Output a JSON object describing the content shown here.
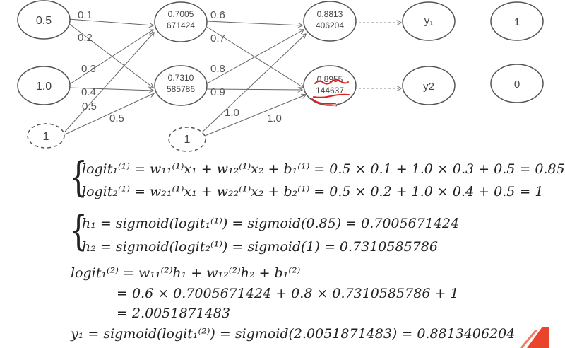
{
  "nodes": {
    "x1": "0.5",
    "x2": "1.0",
    "bias1": "1",
    "h1": [
      "0.7005",
      "671424"
    ],
    "h2": [
      "0.7310",
      "585786"
    ],
    "bias2": "1",
    "o1": [
      "0.8813",
      "406204"
    ],
    "o2": [
      "0.8955",
      "144637"
    ],
    "y1": "y₁",
    "y2": "y2",
    "t1": "1",
    "t2": "0"
  },
  "weights": {
    "w1_11": "0.1",
    "w1_21": "0.2",
    "w1_12": "0.3",
    "w1_22": "0.4",
    "b1_1": "0.5",
    "b1_2": "0.5",
    "w2_11": "0.6",
    "w2_21": "0.7",
    "w2_12": "0.8",
    "w2_22": "0.9",
    "b2_1": "1.0",
    "b2_2": "1.0"
  },
  "equations": {
    "logit1": "logit₁⁽¹⁾ = w₁₁⁽¹⁾x₁ + w₁₂⁽¹⁾x₂ + b₁⁽¹⁾ = 0.5 × 0.1 + 1.0 × 0.3 + 0.5 = 0.85",
    "logit2": "logit₂⁽¹⁾ = w₂₁⁽¹⁾x₁ + w₂₂⁽¹⁾x₂ + b₂⁽¹⁾ = 0.5 × 0.2 + 1.0 × 0.4 + 0.5 = 1",
    "h1": "h₁ = sigmoid(logit₁⁽¹⁾) = sigmoid(0.85) = 0.7005671424",
    "h2": "h₂ = sigmoid(logit₂⁽¹⁾) = sigmoid(1) = 0.7310585786",
    "out_a": "logit₁⁽²⁾ = w₁₁⁽²⁾h₁ + w₁₂⁽²⁾h₂ + b₁⁽²⁾",
    "out_b": "= 0.6 × 0.7005671424 + 0.8 × 0.7310585786 + 1",
    "out_c": "= 2.0051871483",
    "y1": "y₁ = sigmoid(logit₁⁽²⁾) = sigmoid(2.0051871483) = 0.8813406204"
  },
  "colors": {
    "line": "#666666",
    "node": "#555555",
    "annotation": "#e02020",
    "accent": "#e8452c"
  }
}
